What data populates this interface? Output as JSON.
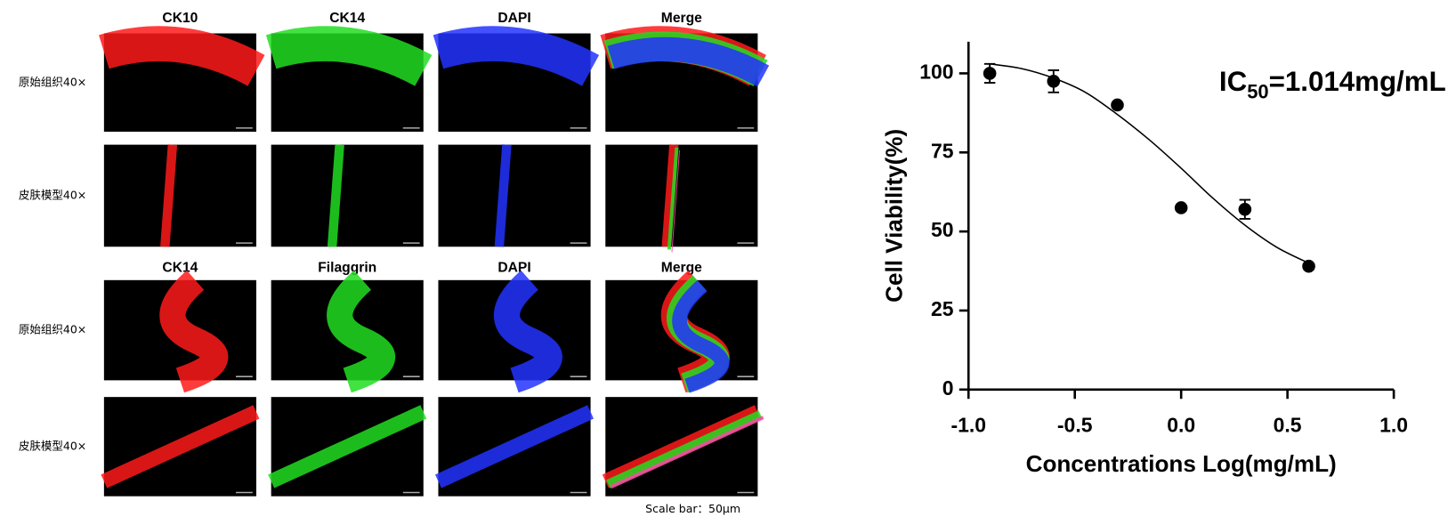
{
  "figure_panels": {
    "headers_top": [
      "CK10",
      "CK14",
      "DAPI",
      "Merge"
    ],
    "headers_bottom": [
      "CK14",
      "Filaggrin",
      "DAPI",
      "Merge"
    ],
    "row_labels": [
      "原始组织40×",
      "皮肤模型40×",
      "原始组织40×",
      "皮肤模型40×"
    ],
    "scale_bar": "Scale bar：50μm"
  },
  "chart_data": {
    "type": "scatter",
    "x_label": "Concentrations Log(mg/mL)",
    "y_label": "Cell Viability(%)",
    "annotation": {
      "prefix": "IC",
      "sub": "50",
      "suffix": "=1.014mg/mL"
    },
    "x": [
      -0.9,
      -0.6,
      -0.3,
      0.0,
      0.3,
      0.6
    ],
    "series": [
      {
        "color": "#000000",
        "values": [
          100,
          97.5,
          90,
          57.5,
          57,
          39
        ],
        "errors": [
          3,
          3.5,
          0,
          0,
          3,
          0
        ]
      }
    ],
    "fit_curve": {
      "x": [
        -0.9,
        -0.75,
        -0.6,
        -0.45,
        -0.3,
        -0.15,
        0.0,
        0.15,
        0.3,
        0.45,
        0.6
      ],
      "y": [
        103,
        101.5,
        98.5,
        94,
        87,
        79,
        70,
        60.5,
        52,
        45,
        40
      ]
    },
    "xlim": [
      -1,
      1
    ],
    "ylim": [
      0,
      110
    ],
    "xticks": [
      {
        "value": -1,
        "label": "-1.0"
      },
      -0.5,
      {
        "value": 0,
        "label": "0.0"
      },
      0.5,
      {
        "value": 1,
        "label": "1.0"
      }
    ],
    "yticks": [
      0,
      25,
      50,
      75,
      100
    ]
  }
}
